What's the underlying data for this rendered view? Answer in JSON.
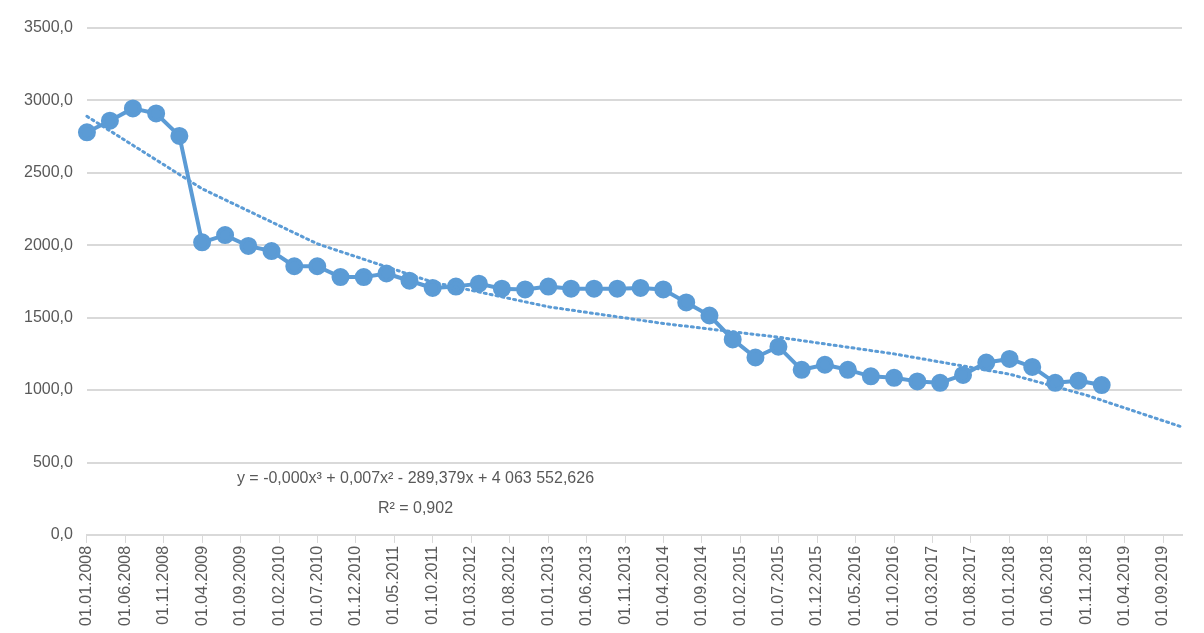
{
  "chart_data": {
    "type": "line",
    "x": [
      "2008-01",
      "2008-04",
      "2008-07",
      "2008-10",
      "2009-01",
      "2009-04",
      "2009-07",
      "2009-10",
      "2010-01",
      "2010-04",
      "2010-07",
      "2010-10",
      "2011-01",
      "2011-04",
      "2011-07",
      "2011-10",
      "2012-01",
      "2012-04",
      "2012-07",
      "2012-10",
      "2013-01",
      "2013-04",
      "2013-07",
      "2013-10",
      "2014-01",
      "2014-04",
      "2014-07",
      "2014-10",
      "2015-01",
      "2015-04",
      "2015-07",
      "2015-10",
      "2016-01",
      "2016-04",
      "2016-07",
      "2016-10",
      "2017-01",
      "2017-04",
      "2017-07",
      "2017-10",
      "2018-01",
      "2018-04",
      "2018-07",
      "2018-10",
      "2019-01"
    ],
    "series": [
      {
        "color": "#5b9bd5",
        "marker": "circle",
        "line_style": "solid",
        "values": [
          2780,
          2860,
          2945,
          2910,
          2755,
          2020,
          2070,
          1995,
          1960,
          1855,
          1855,
          1780,
          1780,
          1805,
          1755,
          1705,
          1715,
          1735,
          1700,
          1695,
          1715,
          1700,
          1700,
          1700,
          1705,
          1695,
          1605,
          1515,
          1350,
          1225,
          1300,
          1140,
          1175,
          1140,
          1095,
          1085,
          1060,
          1050,
          1105,
          1190,
          1215,
          1160,
          1050,
          1065,
          1035
        ]
      },
      {
        "color": "#5b9bd5",
        "marker": "none",
        "line_style": "dotted",
        "x": [
          "2008-01",
          "2009-04",
          "2010-07",
          "2011-10",
          "2013-01",
          "2014-04",
          "2015-07",
          "2016-10",
          "2018-01",
          "2018-11",
          "2019-11-15"
        ],
        "values": [
          2890,
          2390,
          2010,
          1745,
          1575,
          1460,
          1365,
          1250,
          1110,
          965,
          745
        ]
      }
    ],
    "xlim": [
      "2008-01-01",
      "2019-11-15"
    ],
    "xticks": [
      {
        "value": "2008-01-01",
        "label": "01.01.2008"
      },
      {
        "value": "2008-06-01",
        "label": "01.06.2008"
      },
      {
        "value": "2008-11-01",
        "label": "01.11.2008"
      },
      {
        "value": "2009-04-01",
        "label": "01.04.2009"
      },
      {
        "value": "2009-09-01",
        "label": "01.09.2009"
      },
      {
        "value": "2010-02-01",
        "label": "01.02.2010"
      },
      {
        "value": "2010-07-01",
        "label": "01.07.2010"
      },
      {
        "value": "2010-12-01",
        "label": "01.12.2010"
      },
      {
        "value": "2011-05-01",
        "label": "01.05.2011"
      },
      {
        "value": "2011-10-01",
        "label": "01.10.2011"
      },
      {
        "value": "2012-03-01",
        "label": "01.03.2012"
      },
      {
        "value": "2012-08-01",
        "label": "01.08.2012"
      },
      {
        "value": "2013-01-01",
        "label": "01.01.2013"
      },
      {
        "value": "2013-06-01",
        "label": "01.06.2013"
      },
      {
        "value": "2013-11-01",
        "label": "01.11.2013"
      },
      {
        "value": "2014-04-01",
        "label": "01.04.2014"
      },
      {
        "value": "2014-09-01",
        "label": "01.09.2014"
      },
      {
        "value": "2015-02-01",
        "label": "01.02.2015"
      },
      {
        "value": "2015-07-01",
        "label": "01.07.2015"
      },
      {
        "value": "2015-12-01",
        "label": "01.12.2015"
      },
      {
        "value": "2016-05-01",
        "label": "01.05.2016"
      },
      {
        "value": "2016-10-01",
        "label": "01.10.2016"
      },
      {
        "value": "2017-03-01",
        "label": "01.03.2017"
      },
      {
        "value": "2017-08-01",
        "label": "01.08.2017"
      },
      {
        "value": "2018-01-01",
        "label": "01.01.2018"
      },
      {
        "value": "2018-06-01",
        "label": "01.06.2018"
      },
      {
        "value": "2018-11-01",
        "label": "01.11.2018"
      },
      {
        "value": "2019-04-01",
        "label": "01.04.2019"
      },
      {
        "value": "2019-09-01",
        "label": "01.09.2019"
      }
    ],
    "ylim": [
      0,
      3500
    ],
    "yticks": [
      {
        "value": 0,
        "label": "0,0"
      },
      {
        "value": 500,
        "label": "500,0"
      },
      {
        "value": 1000,
        "label": "1000,0"
      },
      {
        "value": 1500,
        "label": "1500,0"
      },
      {
        "value": 2000,
        "label": "2000,0"
      },
      {
        "value": 2500,
        "label": "2500,0"
      },
      {
        "value": 3000,
        "label": "3000,0"
      },
      {
        "value": 3500,
        "label": "3500,0"
      }
    ],
    "grid": "y",
    "legend": false,
    "annotations": [
      "y = -0,000x³ + 0,007x² - 289,379x + 4 063 552,626",
      "R² = 0,902"
    ]
  }
}
